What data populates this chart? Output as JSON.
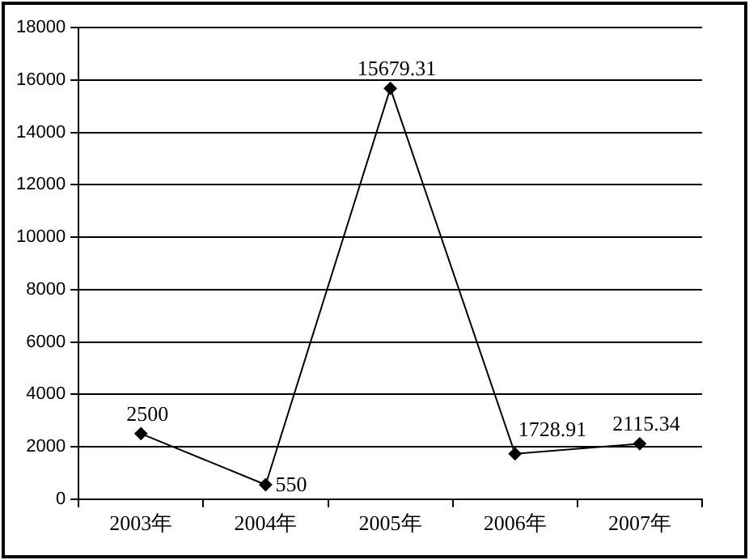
{
  "chart_data": {
    "type": "line",
    "categories": [
      "2003年",
      "2004年",
      "2005年",
      "2006年",
      "2007年"
    ],
    "series": [
      {
        "color": "#000000",
        "values": [
          2500,
          550,
          15679.31,
          1728.91,
          2115.34
        ]
      }
    ],
    "ylim": [
      0,
      18000
    ],
    "yticks": [
      0,
      2000,
      4000,
      6000,
      8000,
      10000,
      12000,
      14000,
      16000,
      18000
    ],
    "grid": "y",
    "legend": false,
    "marker": "diamond",
    "line_style": "solid",
    "data_labels": true
  }
}
